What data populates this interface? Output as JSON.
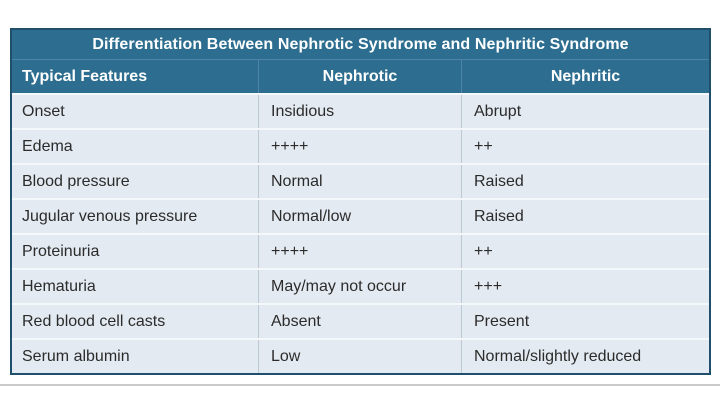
{
  "table": {
    "title": "Differentiation Between Nephrotic Syndrome and Nephritic Syndrome",
    "columns": [
      "Typical Features",
      "Nephrotic",
      "Nephritic"
    ],
    "rows": [
      [
        "Onset",
        "Insidious",
        "Abrupt"
      ],
      [
        "Edema",
        "++++",
        "++"
      ],
      [
        "Blood pressure",
        "Normal",
        "Raised"
      ],
      [
        "Jugular venous pressure",
        "Normal/low",
        "Raised"
      ],
      [
        "Proteinuria",
        "++++",
        "++"
      ],
      [
        "Hematuria",
        "May/may not occur",
        "+++"
      ],
      [
        "Red blood cell casts",
        "Absent",
        "Present"
      ],
      [
        "Serum albumin",
        "Low",
        "Normal/slightly reduced"
      ]
    ],
    "colors": {
      "header_bg": "#2d6e90",
      "header_text": "#ffffff",
      "header_divider": "#4d84a3",
      "body_bg": "#e3eaf1",
      "body_text": "#2b2b2b",
      "outer_border": "#1f4f6b",
      "row_divider": "#f4f8fa",
      "col_divider": "#bac9d6",
      "bottom_rule": "#cacaca"
    }
  }
}
